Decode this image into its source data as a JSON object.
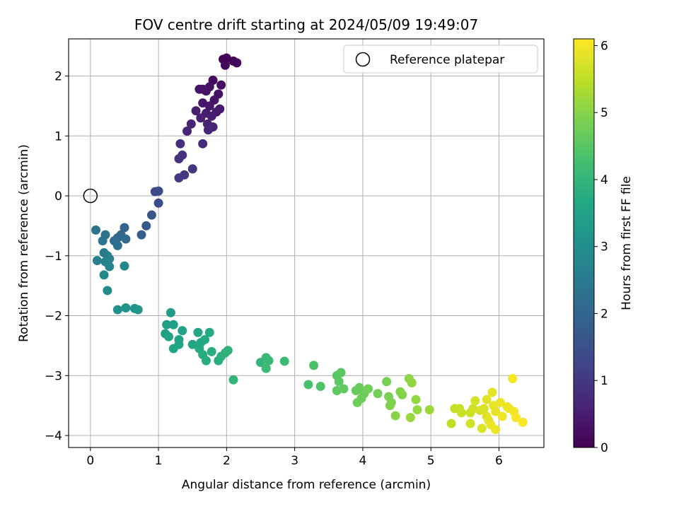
{
  "chart_data": {
    "type": "scatter",
    "title": "FOV centre drift starting at 2024/05/09 19:49:07",
    "xlabel": "Angular distance from reference (arcmin)",
    "ylabel": "Rotation from reference (arcmin)",
    "xlim": [
      -0.32,
      6.66
    ],
    "ylim": [
      -4.2,
      2.62
    ],
    "xticks": [
      0,
      1,
      2,
      3,
      4,
      5,
      6
    ],
    "xtick_labels": [
      "0",
      "1",
      "2",
      "3",
      "4",
      "5",
      "6"
    ],
    "yticks": [
      -4,
      -3,
      -2,
      -1,
      0,
      1,
      2
    ],
    "ytick_labels": [
      "−4",
      "−3",
      "−2",
      "−1",
      "0",
      "1",
      "2"
    ],
    "grid": true,
    "legend": {
      "position": "top-right",
      "entries": [
        {
          "label": "Reference platepar",
          "marker": "open-circle"
        }
      ]
    },
    "reference": {
      "x": 0.0,
      "y": 0.0
    },
    "colorbar": {
      "label": "Hours from first FF file",
      "range": [
        0,
        6.1
      ],
      "ticks": [
        0,
        1,
        2,
        3,
        4,
        5,
        6
      ],
      "tick_labels": [
        "0",
        "1",
        "2",
        "3",
        "4",
        "5",
        "6"
      ],
      "colormap": "viridis"
    },
    "points": [
      {
        "x": 1.95,
        "y": 2.28,
        "c": 0.05
      },
      {
        "x": 2.0,
        "y": 2.3,
        "c": 0.06
      },
      {
        "x": 2.1,
        "y": 2.25,
        "c": 0.08
      },
      {
        "x": 2.15,
        "y": 2.22,
        "c": 0.1
      },
      {
        "x": 1.98,
        "y": 2.18,
        "c": 0.12
      },
      {
        "x": 1.8,
        "y": 1.93,
        "c": 0.18
      },
      {
        "x": 1.92,
        "y": 1.85,
        "c": 0.22
      },
      {
        "x": 1.65,
        "y": 1.78,
        "c": 0.25
      },
      {
        "x": 1.75,
        "y": 1.82,
        "c": 0.28
      },
      {
        "x": 1.88,
        "y": 1.7,
        "c": 0.3
      },
      {
        "x": 1.7,
        "y": 1.75,
        "c": 0.32
      },
      {
        "x": 1.6,
        "y": 1.78,
        "c": 0.33
      },
      {
        "x": 1.82,
        "y": 1.6,
        "c": 0.35
      },
      {
        "x": 1.65,
        "y": 1.55,
        "c": 0.38
      },
      {
        "x": 1.75,
        "y": 1.5,
        "c": 0.4
      },
      {
        "x": 1.9,
        "y": 1.45,
        "c": 0.42
      },
      {
        "x": 1.85,
        "y": 1.4,
        "c": 0.45
      },
      {
        "x": 1.55,
        "y": 1.42,
        "c": 0.48
      },
      {
        "x": 1.7,
        "y": 1.38,
        "c": 0.5
      },
      {
        "x": 1.78,
        "y": 1.33,
        "c": 0.52
      },
      {
        "x": 1.62,
        "y": 1.3,
        "c": 0.55
      },
      {
        "x": 1.72,
        "y": 1.2,
        "c": 0.58
      },
      {
        "x": 1.8,
        "y": 1.15,
        "c": 0.6
      },
      {
        "x": 1.48,
        "y": 1.2,
        "c": 0.62
      },
      {
        "x": 1.42,
        "y": 1.08,
        "c": 0.65
      },
      {
        "x": 1.73,
        "y": 1.1,
        "c": 0.68
      },
      {
        "x": 1.65,
        "y": 0.87,
        "c": 0.75
      },
      {
        "x": 1.32,
        "y": 0.87,
        "c": 0.82
      },
      {
        "x": 1.35,
        "y": 0.68,
        "c": 0.85
      },
      {
        "x": 1.3,
        "y": 0.62,
        "c": 0.9
      },
      {
        "x": 1.5,
        "y": 0.45,
        "c": 0.95
      },
      {
        "x": 1.38,
        "y": 0.35,
        "c": 1.0
      },
      {
        "x": 1.3,
        "y": 0.3,
        "c": 1.05
      },
      {
        "x": 0.95,
        "y": 0.07,
        "c": 1.3
      },
      {
        "x": 1.0,
        "y": 0.08,
        "c": 1.35
      },
      {
        "x": 1.0,
        "y": -0.12,
        "c": 1.45
      },
      {
        "x": 0.9,
        "y": -0.32,
        "c": 1.6
      },
      {
        "x": 0.82,
        "y": -0.5,
        "c": 1.7
      },
      {
        "x": 0.75,
        "y": -0.65,
        "c": 1.8
      },
      {
        "x": 0.5,
        "y": -0.53,
        "c": 1.95
      },
      {
        "x": 0.45,
        "y": -0.65,
        "c": 2.0
      },
      {
        "x": 0.4,
        "y": -0.7,
        "c": 2.05
      },
      {
        "x": 0.52,
        "y": -0.72,
        "c": 2.1
      },
      {
        "x": 0.35,
        "y": -0.75,
        "c": 2.15
      },
      {
        "x": 0.4,
        "y": -0.83,
        "c": 2.2
      },
      {
        "x": 0.08,
        "y": -0.57,
        "c": 2.3
      },
      {
        "x": 0.22,
        "y": -0.65,
        "c": 2.35
      },
      {
        "x": 0.18,
        "y": -0.75,
        "c": 2.4
      },
      {
        "x": 0.2,
        "y": -0.95,
        "c": 2.5
      },
      {
        "x": 0.25,
        "y": -1.0,
        "c": 2.55
      },
      {
        "x": 0.28,
        "y": -1.05,
        "c": 2.6
      },
      {
        "x": 0.1,
        "y": -1.08,
        "c": 2.65
      },
      {
        "x": 0.22,
        "y": -1.1,
        "c": 2.7
      },
      {
        "x": 0.28,
        "y": -1.18,
        "c": 2.75
      },
      {
        "x": 0.5,
        "y": -1.17,
        "c": 2.78
      },
      {
        "x": 0.2,
        "y": -1.32,
        "c": 2.85
      },
      {
        "x": 0.25,
        "y": -1.58,
        "c": 2.9
      },
      {
        "x": 0.4,
        "y": -1.9,
        "c": 3.05
      },
      {
        "x": 0.52,
        "y": -1.87,
        "c": 3.1
      },
      {
        "x": 0.65,
        "y": -1.88,
        "c": 3.15
      },
      {
        "x": 0.7,
        "y": -1.9,
        "c": 3.2
      },
      {
        "x": 1.18,
        "y": -1.95,
        "c": 3.35
      },
      {
        "x": 1.12,
        "y": -2.15,
        "c": 3.4
      },
      {
        "x": 1.22,
        "y": -2.15,
        "c": 3.42
      },
      {
        "x": 1.1,
        "y": -2.3,
        "c": 3.45
      },
      {
        "x": 1.15,
        "y": -2.35,
        "c": 3.48
      },
      {
        "x": 1.35,
        "y": -2.25,
        "c": 3.5
      },
      {
        "x": 1.3,
        "y": -2.4,
        "c": 3.52
      },
      {
        "x": 1.3,
        "y": -2.48,
        "c": 3.55
      },
      {
        "x": 1.22,
        "y": -2.55,
        "c": 3.58
      },
      {
        "x": 1.5,
        "y": -2.48,
        "c": 3.6
      },
      {
        "x": 1.58,
        "y": -2.28,
        "c": 3.62
      },
      {
        "x": 1.62,
        "y": -2.45,
        "c": 3.65
      },
      {
        "x": 1.68,
        "y": -2.4,
        "c": 3.68
      },
      {
        "x": 1.75,
        "y": -2.28,
        "c": 3.7
      },
      {
        "x": 1.6,
        "y": -2.55,
        "c": 3.72
      },
      {
        "x": 1.65,
        "y": -2.65,
        "c": 3.75
      },
      {
        "x": 1.7,
        "y": -2.75,
        "c": 3.78
      },
      {
        "x": 1.78,
        "y": -2.6,
        "c": 3.8
      },
      {
        "x": 1.88,
        "y": -2.75,
        "c": 3.82
      },
      {
        "x": 1.92,
        "y": -2.68,
        "c": 3.85
      },
      {
        "x": 1.98,
        "y": -2.62,
        "c": 3.88
      },
      {
        "x": 2.02,
        "y": -2.58,
        "c": 3.9
      },
      {
        "x": 2.1,
        "y": -3.07,
        "c": 3.95
      },
      {
        "x": 2.5,
        "y": -2.78,
        "c": 4.0
      },
      {
        "x": 2.58,
        "y": -2.7,
        "c": 4.05
      },
      {
        "x": 2.62,
        "y": -2.75,
        "c": 4.08
      },
      {
        "x": 2.58,
        "y": -2.88,
        "c": 4.1
      },
      {
        "x": 2.85,
        "y": -2.76,
        "c": 4.15
      },
      {
        "x": 3.2,
        "y": -3.15,
        "c": 4.3
      },
      {
        "x": 3.28,
        "y": -2.83,
        "c": 4.35
      },
      {
        "x": 3.38,
        "y": -3.18,
        "c": 4.4
      },
      {
        "x": 3.62,
        "y": -3.0,
        "c": 4.5
      },
      {
        "x": 3.68,
        "y": -2.95,
        "c": 4.52
      },
      {
        "x": 3.65,
        "y": -3.1,
        "c": 4.55
      },
      {
        "x": 3.62,
        "y": -3.25,
        "c": 4.58
      },
      {
        "x": 3.72,
        "y": -3.22,
        "c": 4.6
      },
      {
        "x": 3.9,
        "y": -3.25,
        "c": 4.65
      },
      {
        "x": 3.95,
        "y": -3.2,
        "c": 4.68
      },
      {
        "x": 4.02,
        "y": -3.3,
        "c": 4.7
      },
      {
        "x": 3.98,
        "y": -3.38,
        "c": 4.72
      },
      {
        "x": 3.92,
        "y": -3.45,
        "c": 4.75
      },
      {
        "x": 4.08,
        "y": -3.22,
        "c": 4.78
      },
      {
        "x": 4.22,
        "y": -3.3,
        "c": 4.8
      },
      {
        "x": 4.35,
        "y": -3.1,
        "c": 4.85
      },
      {
        "x": 4.38,
        "y": -3.35,
        "c": 4.88
      },
      {
        "x": 4.42,
        "y": -3.45,
        "c": 4.9
      },
      {
        "x": 4.4,
        "y": -3.5,
        "c": 4.92
      },
      {
        "x": 4.55,
        "y": -3.27,
        "c": 4.95
      },
      {
        "x": 4.58,
        "y": -3.32,
        "c": 4.98
      },
      {
        "x": 4.48,
        "y": -3.67,
        "c": 5.0
      },
      {
        "x": 4.68,
        "y": -3.05,
        "c": 5.05
      },
      {
        "x": 4.72,
        "y": -3.12,
        "c": 5.08
      },
      {
        "x": 4.78,
        "y": -3.4,
        "c": 5.1
      },
      {
        "x": 4.8,
        "y": -3.57,
        "c": 5.12
      },
      {
        "x": 4.7,
        "y": -3.7,
        "c": 5.15
      },
      {
        "x": 4.98,
        "y": -3.57,
        "c": 5.2
      },
      {
        "x": 5.3,
        "y": -3.8,
        "c": 5.5
      },
      {
        "x": 5.35,
        "y": -3.55,
        "c": 5.55
      },
      {
        "x": 5.42,
        "y": -3.55,
        "c": 5.58
      },
      {
        "x": 5.45,
        "y": -3.62,
        "c": 5.6
      },
      {
        "x": 5.58,
        "y": -3.62,
        "c": 5.62
      },
      {
        "x": 5.62,
        "y": -3.55,
        "c": 5.65
      },
      {
        "x": 5.58,
        "y": -3.8,
        "c": 5.68
      },
      {
        "x": 5.65,
        "y": -3.42,
        "c": 5.7
      },
      {
        "x": 5.72,
        "y": -3.58,
        "c": 5.72
      },
      {
        "x": 5.78,
        "y": -3.55,
        "c": 5.75
      },
      {
        "x": 5.75,
        "y": -3.88,
        "c": 5.78
      },
      {
        "x": 5.82,
        "y": -3.4,
        "c": 5.8
      },
      {
        "x": 5.82,
        "y": -3.68,
        "c": 5.82
      },
      {
        "x": 5.85,
        "y": -3.75,
        "c": 5.84
      },
      {
        "x": 5.9,
        "y": -3.28,
        "c": 5.86
      },
      {
        "x": 5.92,
        "y": -3.5,
        "c": 5.88
      },
      {
        "x": 5.95,
        "y": -3.6,
        "c": 5.9
      },
      {
        "x": 5.88,
        "y": -3.82,
        "c": 5.91
      },
      {
        "x": 5.95,
        "y": -3.9,
        "c": 5.92
      },
      {
        "x": 6.02,
        "y": -3.45,
        "c": 5.94
      },
      {
        "x": 6.05,
        "y": -3.68,
        "c": 5.95
      },
      {
        "x": 6.12,
        "y": -3.52,
        "c": 5.97
      },
      {
        "x": 6.15,
        "y": -3.55,
        "c": 5.98
      },
      {
        "x": 6.2,
        "y": -3.05,
        "c": 6.0
      },
      {
        "x": 6.22,
        "y": -3.6,
        "c": 6.02
      },
      {
        "x": 6.25,
        "y": -3.7,
        "c": 6.04
      },
      {
        "x": 6.35,
        "y": -3.78,
        "c": 6.06
      }
    ]
  }
}
